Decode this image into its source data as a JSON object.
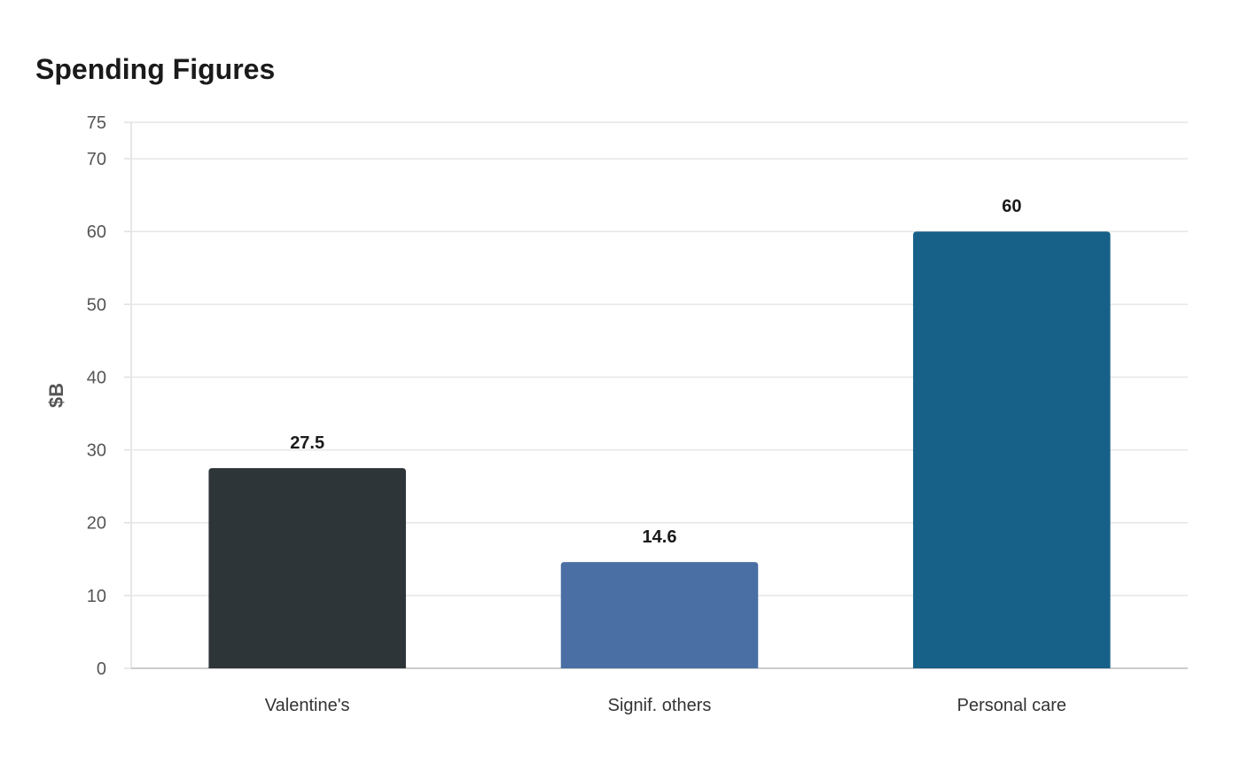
{
  "chart_data": {
    "type": "bar",
    "title": "Spending Figures",
    "xlabel": "",
    "ylabel": "$B",
    "categories": [
      "Valentine's",
      "Signif. others",
      "Personal care"
    ],
    "values": [
      27.5,
      14.6,
      60
    ],
    "value_labels": [
      "27.5",
      "14.6",
      "60"
    ],
    "colors": [
      "#2e3538",
      "#4a6fa5",
      "#176087"
    ],
    "ylim": [
      0,
      75
    ],
    "yticks": [
      0,
      10,
      20,
      30,
      40,
      50,
      60,
      70,
      75
    ],
    "grid": true,
    "legend": "none"
  }
}
